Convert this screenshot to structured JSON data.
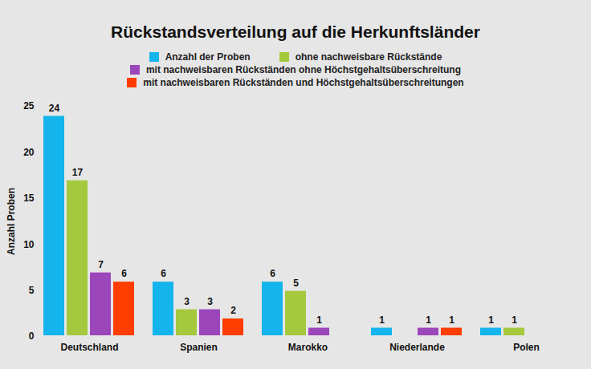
{
  "chart_data": {
    "type": "bar",
    "title": "Rückstandsverteilung auf die Herkunftsländer",
    "categories": [
      "Deutschland",
      "Spanien",
      "Marokko",
      "Niederlande",
      "Polen"
    ],
    "series": [
      {
        "name": "Anzahl der Proben",
        "color": "#14b4ec",
        "values": [
          24,
          6,
          6,
          1,
          1
        ]
      },
      {
        "name": "ohne nachweisbare Rückstände",
        "color": "#a4c93c",
        "values": [
          17,
          3,
          5,
          null,
          1
        ]
      },
      {
        "name": "mit nachweisbaren Rückständen ohne Höchstgehaltsüberschreitung",
        "color": "#9b46bb",
        "values": [
          7,
          3,
          1,
          1,
          null
        ]
      },
      {
        "name": "mit nachweisbaren Rückständen und Höchstgehaltsüberschreitungen",
        "color": "#ff3d00",
        "values": [
          6,
          2,
          null,
          1,
          null
        ]
      }
    ],
    "y_label": "Anzahl Proben",
    "ylim": [
      0,
      25
    ],
    "yticks": [
      0,
      5,
      10,
      15,
      20,
      25
    ],
    "grid": false,
    "legend": "top",
    "data_labels": true
  }
}
